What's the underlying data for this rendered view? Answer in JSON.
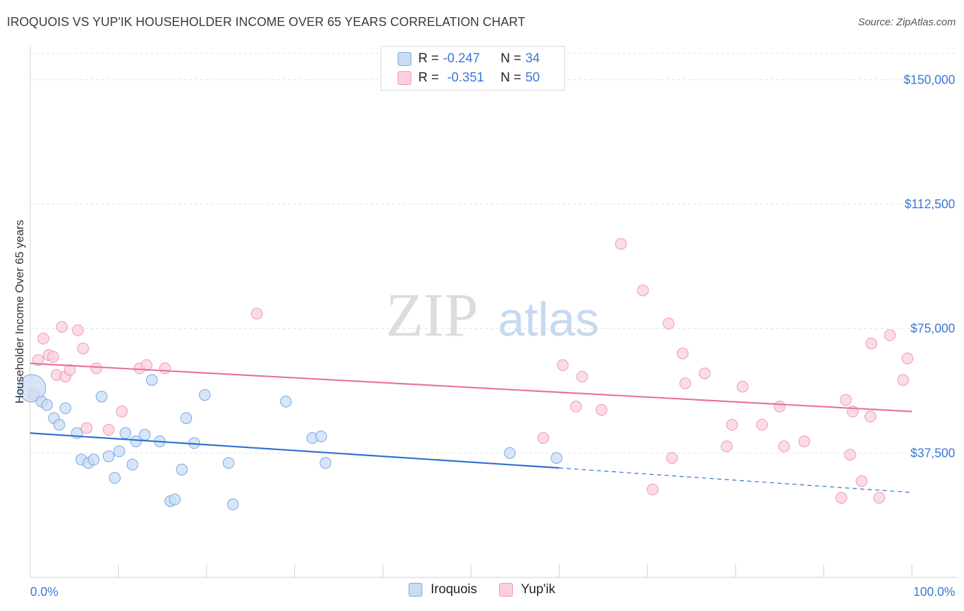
{
  "title": "IROQUOIS VS YUP'IK HOUSEHOLDER INCOME OVER 65 YEARS CORRELATION CHART",
  "source": "Source: ZipAtlas.com",
  "watermark": {
    "zip": "ZIP",
    "atlas": "atlas"
  },
  "legend": {
    "r_label": "R =",
    "n_label": "N =",
    "rows": [
      {
        "r": "-0.247",
        "n": "34"
      },
      {
        "r": "-0.351",
        "n": "50"
      }
    ]
  },
  "colors": {
    "iroquois_fill": "#c9dcf5",
    "iroquois_stroke": "#7aa7e0",
    "iroquois_line": "#2f6fcf",
    "yupik_fill": "#f9d0dc",
    "yupik_stroke": "#ef97b2",
    "yupik_line": "#e8729a",
    "accent_text": "#3c78d8"
  },
  "chart_data": {
    "type": "scatter",
    "ylabel": "Householder Income Over 65 years",
    "xlim": [
      0,
      100
    ],
    "ylim": [
      0,
      157500
    ],
    "x_tick_labels": [
      "0.0%",
      "100.0%"
    ],
    "y_ticks": [
      37500,
      75000,
      112500,
      150000
    ],
    "y_tick_labels": [
      "$37,500",
      "$75,000",
      "$112,500",
      "$150,000"
    ],
    "grid": true,
    "legend_position": "top-center and bottom",
    "series": [
      {
        "name": "Iroquois",
        "points": [
          [
            0.2,
            57000
          ],
          [
            1.3,
            53000
          ],
          [
            1.9,
            52000
          ],
          [
            2.7,
            48000
          ],
          [
            3.3,
            46000
          ],
          [
            4.0,
            51000
          ],
          [
            5.3,
            43500
          ],
          [
            5.8,
            35500
          ],
          [
            6.6,
            34500
          ],
          [
            7.2,
            35500
          ],
          [
            8.1,
            54500
          ],
          [
            8.9,
            36500
          ],
          [
            9.6,
            30000
          ],
          [
            10.1,
            38000
          ],
          [
            10.8,
            43500
          ],
          [
            11.6,
            34000
          ],
          [
            12.0,
            41000
          ],
          [
            13.0,
            43000
          ],
          [
            13.8,
            59500
          ],
          [
            14.7,
            41000
          ],
          [
            15.9,
            23000
          ],
          [
            16.4,
            23500
          ],
          [
            17.2,
            32500
          ],
          [
            17.7,
            48000
          ],
          [
            18.6,
            40500
          ],
          [
            19.8,
            55000
          ],
          [
            22.5,
            34500
          ],
          [
            23.0,
            22000
          ],
          [
            29.0,
            53000
          ],
          [
            32.0,
            42000
          ],
          [
            33.0,
            42500
          ],
          [
            33.5,
            34500
          ],
          [
            54.4,
            37500
          ],
          [
            59.7,
            36000
          ]
        ],
        "trend": {
          "x": [
            0,
            60
          ],
          "y": [
            43500,
            33000
          ],
          "dashed_to": [
            100,
            25600
          ]
        }
      },
      {
        "name": "Yup'ik",
        "points": [
          [
            0.4,
            55000
          ],
          [
            0.9,
            65500
          ],
          [
            1.5,
            72000
          ],
          [
            2.1,
            67000
          ],
          [
            2.6,
            66500
          ],
          [
            3.0,
            61000
          ],
          [
            3.6,
            75500
          ],
          [
            4.0,
            60500
          ],
          [
            4.5,
            62500
          ],
          [
            5.4,
            74500
          ],
          [
            6.0,
            69000
          ],
          [
            6.4,
            45000
          ],
          [
            7.5,
            63000
          ],
          [
            8.9,
            44500
          ],
          [
            10.4,
            50000
          ],
          [
            12.4,
            63000
          ],
          [
            13.2,
            64000
          ],
          [
            15.3,
            63000
          ],
          [
            25.7,
            79500
          ],
          [
            58.2,
            42000
          ],
          [
            60.4,
            64000
          ],
          [
            61.9,
            51500
          ],
          [
            62.6,
            60500
          ],
          [
            64.8,
            50500
          ],
          [
            67.0,
            100500
          ],
          [
            69.5,
            86500
          ],
          [
            70.6,
            26500
          ],
          [
            72.4,
            76500
          ],
          [
            72.8,
            36000
          ],
          [
            74.0,
            67500
          ],
          [
            74.3,
            58500
          ],
          [
            76.5,
            61500
          ],
          [
            79.0,
            39500
          ],
          [
            79.6,
            46000
          ],
          [
            80.8,
            57500
          ],
          [
            83.0,
            46000
          ],
          [
            85.0,
            51500
          ],
          [
            85.5,
            39500
          ],
          [
            87.8,
            41000
          ],
          [
            92.0,
            24000
          ],
          [
            92.5,
            53500
          ],
          [
            93.0,
            37000
          ],
          [
            93.3,
            50000
          ],
          [
            94.3,
            29000
          ],
          [
            95.3,
            48500
          ],
          [
            95.4,
            70500
          ],
          [
            96.3,
            24000
          ],
          [
            97.5,
            73000
          ],
          [
            99.0,
            59500
          ],
          [
            99.5,
            66000
          ]
        ],
        "trend": {
          "x": [
            0,
            100
          ],
          "y": [
            64500,
            50000
          ]
        }
      }
    ]
  }
}
